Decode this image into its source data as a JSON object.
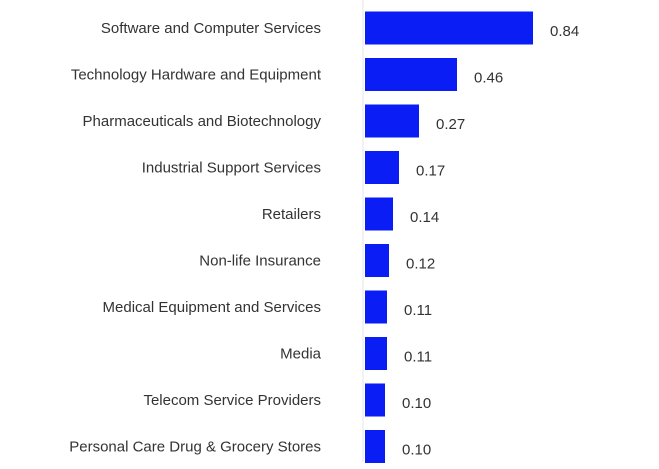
{
  "chart_data": {
    "type": "bar",
    "orientation": "horizontal",
    "categories": [
      "Software and Computer Services",
      "Technology Hardware and Equipment",
      "Pharmaceuticals and Biotechnology",
      "Industrial Support Services",
      "Retailers",
      "Non-life Insurance",
      "Medical Equipment and Services",
      "Media",
      "Telecom Service Providers",
      "Personal Care Drug & Grocery Stores"
    ],
    "values": [
      0.84,
      0.46,
      0.27,
      0.17,
      0.14,
      0.12,
      0.11,
      0.11,
      0.1,
      0.1
    ],
    "value_labels": [
      "0.84",
      "0.46",
      "0.27",
      "0.17",
      "0.14",
      "0.12",
      "0.11",
      "0.11",
      "0.10",
      "0.10"
    ],
    "title": "",
    "xlabel": "",
    "ylabel": "",
    "xlim": [
      0,
      1.0
    ],
    "grid": false,
    "legend": "none",
    "bar_color": "#0a1df5",
    "axis_color": "#e6e6e6"
  }
}
